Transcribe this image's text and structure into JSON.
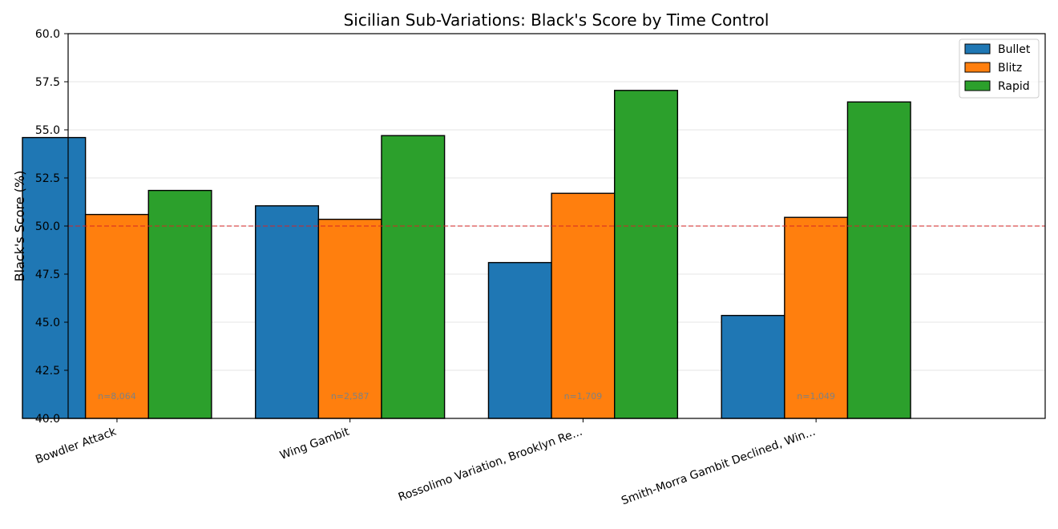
{
  "chart_data": {
    "type": "bar",
    "title": "Sicilian Sub-Variations: Black's Score by Time Control",
    "xlabel": "",
    "ylabel": "Black's Score (%)",
    "ylim": [
      40.0,
      60.0
    ],
    "yticks": [
      "40.0",
      "42.5",
      "45.0",
      "47.5",
      "50.0",
      "52.5",
      "55.0",
      "57.5",
      "60.0"
    ],
    "categories": [
      "Bowdler Attack",
      "Wing Gambit",
      "Rossolimo Variation, Brooklyn Re...",
      "Smith-Morra Gambit Declined, Win..."
    ],
    "sample_sizes": [
      "n=8,064",
      "n=2,587",
      "n=1,709",
      "n=1,049"
    ],
    "series": [
      {
        "name": "Bullet",
        "color": "#1f77b4",
        "values": [
          54.6,
          51.05,
          48.1,
          45.35
        ]
      },
      {
        "name": "Blitz",
        "color": "#ff7f0e",
        "values": [
          50.6,
          50.35,
          51.7,
          50.45
        ]
      },
      {
        "name": "Rapid",
        "color": "#2ca02c",
        "values": [
          51.85,
          54.7,
          57.05,
          56.45
        ]
      }
    ],
    "reference_line": {
      "value": 50.0,
      "color": "#d62728",
      "style": "dashed"
    },
    "grid": "horizontal",
    "legend_position": "top-right"
  }
}
